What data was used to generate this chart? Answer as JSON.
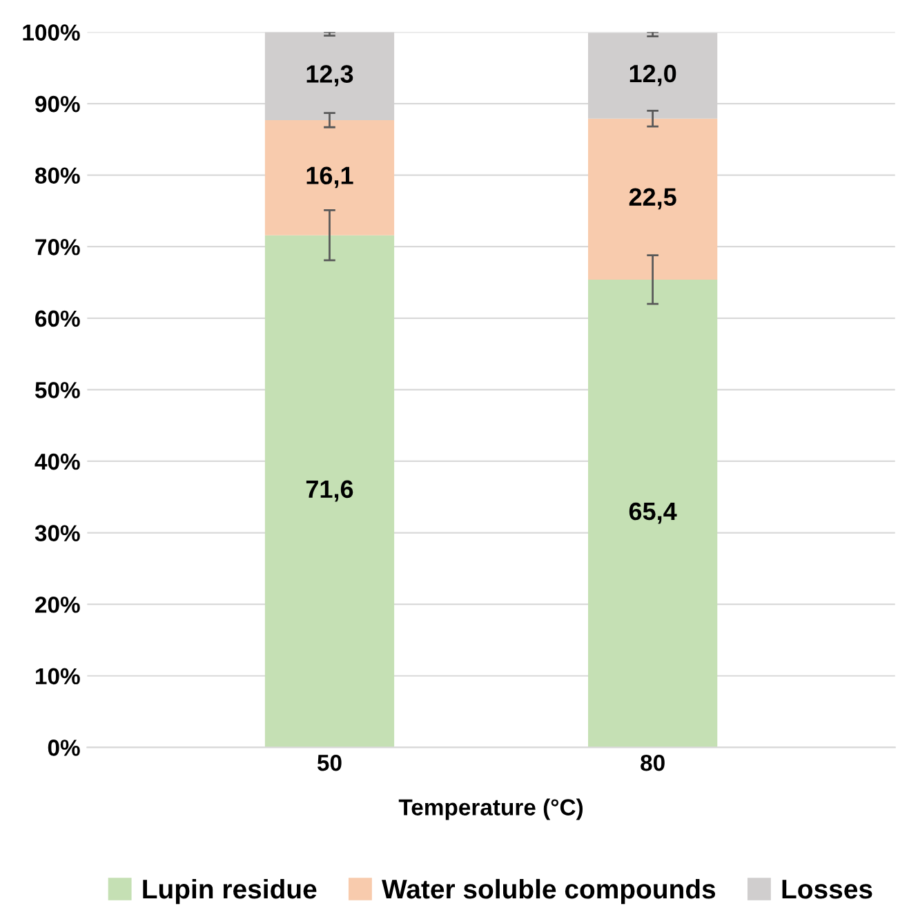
{
  "chart_data": {
    "type": "bar",
    "stacked": true,
    "xlabel": "Temperature (°C)",
    "categories": [
      "50",
      "80"
    ],
    "series": [
      {
        "name": "Lupin residue",
        "color": "#c5e0b4",
        "values": [
          71.6,
          65.4
        ],
        "value_labels": [
          "71,6",
          "65,4"
        ],
        "errors": [
          3.5,
          3.4
        ]
      },
      {
        "name": "Water soluble compounds",
        "color": "#f8cbad",
        "values": [
          16.1,
          22.5
        ],
        "value_labels": [
          "16,1",
          "22,5"
        ],
        "errors": [
          1.0,
          1.1
        ]
      },
      {
        "name": "Losses",
        "color": "#d0cece",
        "values": [
          12.3,
          12.0
        ],
        "value_labels": [
          "12,3",
          "12,0"
        ],
        "errors": [
          [
            99.5,
            100
          ],
          [
            99.4,
            100
          ]
        ]
      }
    ],
    "ylim": [
      0,
      100
    ],
    "yticks": [
      {
        "value": 0,
        "label": "0%"
      },
      {
        "value": 10,
        "label": "10%"
      },
      {
        "value": 20,
        "label": "20%"
      },
      {
        "value": 30,
        "label": "30%"
      },
      {
        "value": 40,
        "label": "40%"
      },
      {
        "value": 50,
        "label": "50%"
      },
      {
        "value": 60,
        "label": "60%"
      },
      {
        "value": 70,
        "label": "70%"
      },
      {
        "value": 80,
        "label": "80%"
      },
      {
        "value": 90,
        "label": "90%"
      },
      {
        "value": 100,
        "label": "100%"
      }
    ],
    "grid": "y",
    "legend": "bottom"
  }
}
